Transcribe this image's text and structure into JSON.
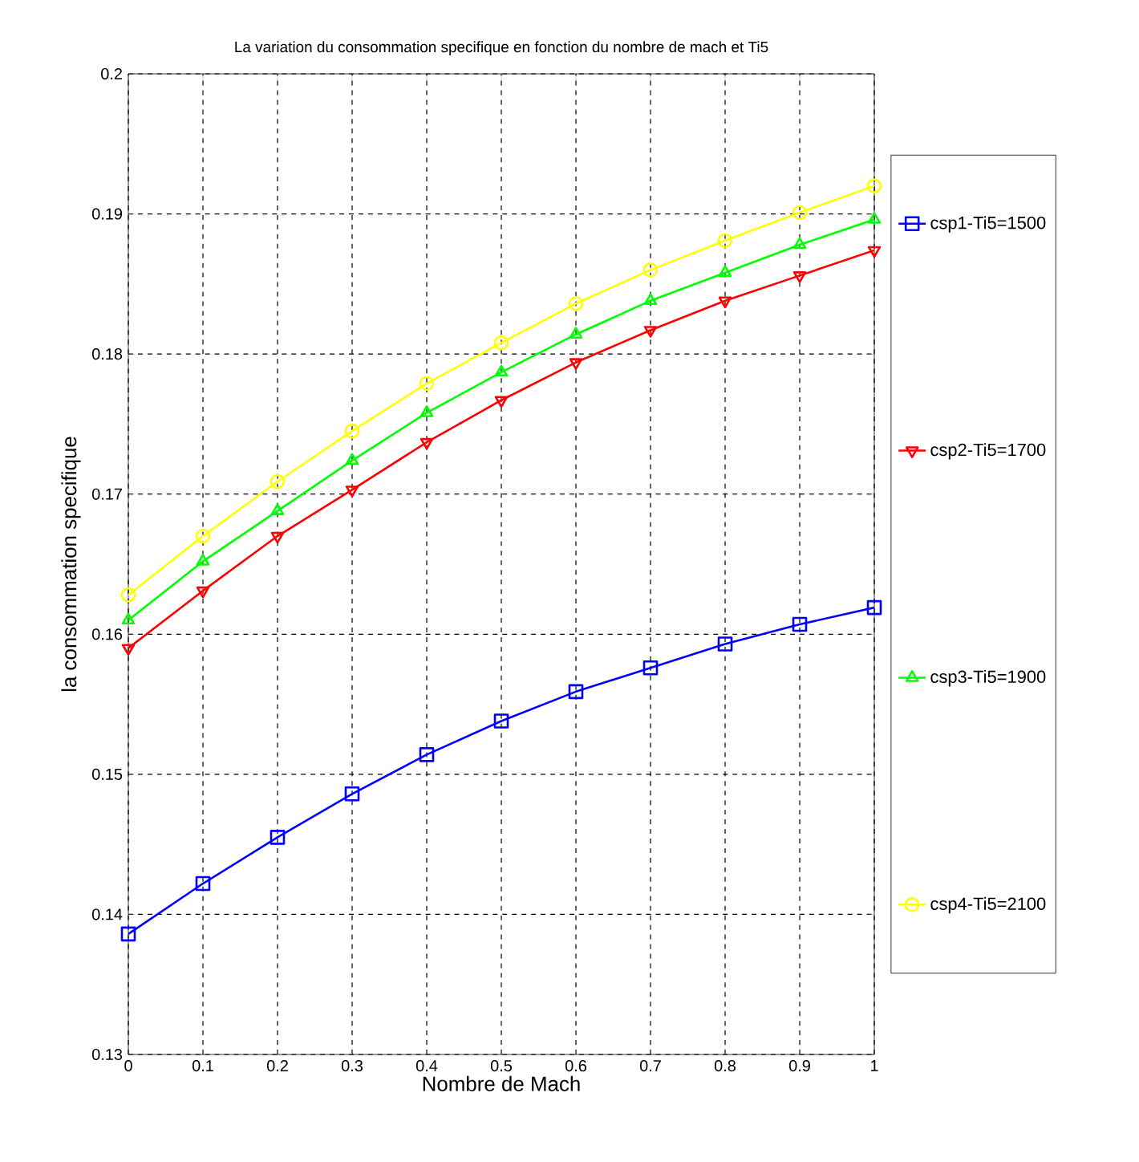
{
  "chart_data": {
    "type": "line",
    "title": "La variation du consommation specifique en fonction du nombre de mach et Ti5",
    "xlabel": "Nombre de Mach",
    "ylabel": "la consommation specifique",
    "x": [
      0,
      0.1,
      0.2,
      0.3,
      0.4,
      0.5,
      0.6,
      0.7,
      0.8,
      0.9,
      1
    ],
    "series": [
      {
        "name": "csp1-Ti5=1500",
        "color": "#0000ff",
        "marker": "square",
        "values": [
          0.1386,
          0.1422,
          0.1455,
          0.1486,
          0.1514,
          0.1538,
          0.1559,
          0.1576,
          0.1593,
          0.1607,
          0.1619
        ]
      },
      {
        "name": "csp2-Ti5=1700",
        "color": "#ff0000",
        "marker": "triangle-down",
        "values": [
          0.159,
          0.1631,
          0.167,
          0.1703,
          0.1737,
          0.1767,
          0.1794,
          0.1817,
          0.1838,
          0.1856,
          0.1874
        ]
      },
      {
        "name": "csp3-Ti5=1900",
        "color": "#00ff00",
        "marker": "triangle",
        "values": [
          0.161,
          0.1652,
          0.1688,
          0.1724,
          0.1758,
          0.1787,
          0.1814,
          0.1838,
          0.1858,
          0.1878,
          0.1896
        ]
      },
      {
        "name": "csp4-Ti5=2100",
        "color": "#ffff00",
        "marker": "circle",
        "values": [
          0.1628,
          0.167,
          0.1709,
          0.1745,
          0.1779,
          0.1808,
          0.1836,
          0.186,
          0.1881,
          0.1901,
          0.192
        ]
      }
    ],
    "xlim": [
      0,
      1
    ],
    "ylim": [
      0.13,
      0.2
    ],
    "xticks": [
      0,
      0.1,
      0.2,
      0.3,
      0.4,
      0.5,
      0.6,
      0.7,
      0.8,
      0.9,
      1
    ],
    "yticks": [
      0.13,
      0.14,
      0.15,
      0.16,
      0.17,
      0.18,
      0.19,
      0.2
    ],
    "grid": true,
    "legend": "right",
    "line_style": "solid"
  }
}
